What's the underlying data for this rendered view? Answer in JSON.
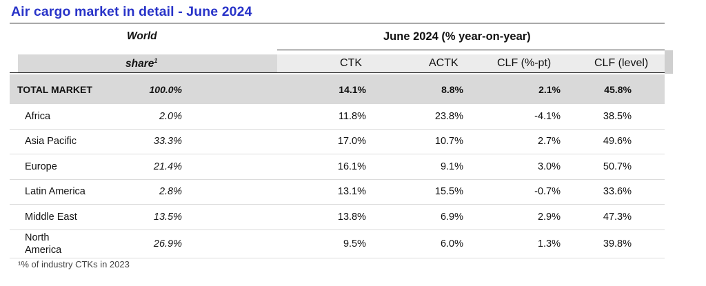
{
  "title": "Air cargo market in detail - June 2024",
  "header": {
    "world": "World",
    "share": "share",
    "share_footnote_mark": "1",
    "period": "June 2024 (% year-on-year)",
    "columns": [
      "CTK",
      "ACTK",
      "CLF (%-pt)",
      "CLF (level)"
    ]
  },
  "total": {
    "region": "TOTAL MARKET",
    "share": "100.0%",
    "ctk": "14.1%",
    "actk": "8.8%",
    "clf_pt": "2.1%",
    "clf_level": "45.8%"
  },
  "rows": [
    {
      "region": "Africa",
      "share": "2.0%",
      "ctk": "11.8%",
      "actk": "23.8%",
      "clf_pt": "-4.1%",
      "clf_level": "38.5%"
    },
    {
      "region": "Asia Pacific",
      "share": "33.3%",
      "ctk": "17.0%",
      "actk": "10.7%",
      "clf_pt": "2.7%",
      "clf_level": "49.6%"
    },
    {
      "region": "Europe",
      "share": "21.4%",
      "ctk": "16.1%",
      "actk": "9.1%",
      "clf_pt": "3.0%",
      "clf_level": "50.7%"
    },
    {
      "region": "Latin America",
      "share": "2.8%",
      "ctk": "13.1%",
      "actk": "15.5%",
      "clf_pt": "-0.7%",
      "clf_level": "33.6%"
    },
    {
      "region": "Middle East",
      "share": "13.5%",
      "ctk": "13.8%",
      "actk": "6.9%",
      "clf_pt": "2.9%",
      "clf_level": "47.3%"
    },
    {
      "region": "North America",
      "share": "26.9%",
      "ctk": "9.5%",
      "actk": "6.0%",
      "clf_pt": "1.3%",
      "clf_level": "39.8%"
    }
  ],
  "footnote": "¹% of industry CTKs in 2023",
  "colors": {
    "title": "#2833c8",
    "band": "#d9d9d9"
  }
}
